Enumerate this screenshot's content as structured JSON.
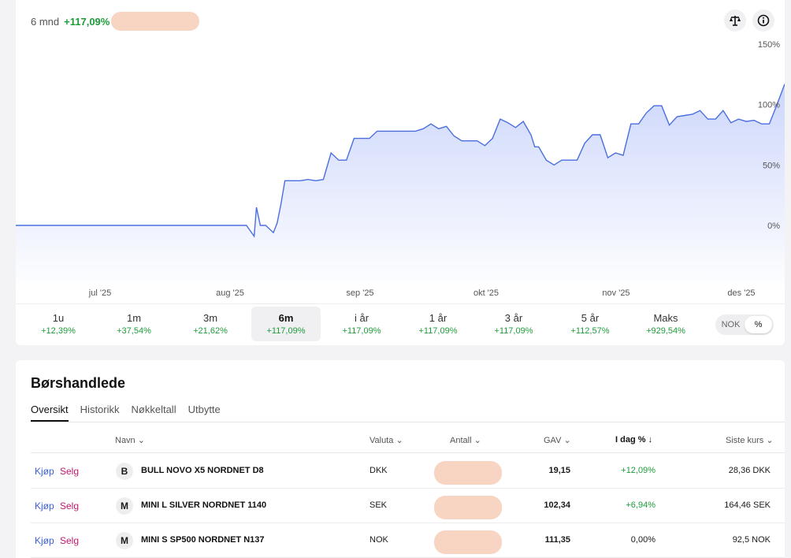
{
  "performance": {
    "period": "6 mnd",
    "value": "+117,09%"
  },
  "icons": {
    "compare": "scale-icon",
    "info": "info-icon"
  },
  "chart_data": {
    "type": "area",
    "x_labels": [
      "jul '25",
      "aug '25",
      "sep '25",
      "okt '25",
      "nov '25",
      "des '25"
    ],
    "y_ticks": [
      "150%",
      "100%",
      "50%",
      "0%"
    ],
    "ylim": [
      -50,
      150
    ],
    "y_axis_position": "right",
    "grid": false,
    "x": [
      0,
      0.05,
      0.1,
      0.15,
      0.2,
      0.25,
      0.3,
      0.31,
      0.313,
      0.318,
      0.325,
      0.335,
      0.34,
      0.345,
      0.35,
      0.36,
      0.37,
      0.38,
      0.39,
      0.4,
      0.41,
      0.42,
      0.425,
      0.43,
      0.44,
      0.45,
      0.46,
      0.47,
      0.48,
      0.49,
      0.5,
      0.51,
      0.52,
      0.53,
      0.54,
      0.55,
      0.56,
      0.57,
      0.58,
      0.59,
      0.6,
      0.61,
      0.62,
      0.63,
      0.64,
      0.65,
      0.66,
      0.67,
      0.675,
      0.68,
      0.69,
      0.7,
      0.71,
      0.72,
      0.73,
      0.74,
      0.75,
      0.76,
      0.77,
      0.78,
      0.79,
      0.8,
      0.81,
      0.82,
      0.83,
      0.84,
      0.85,
      0.86,
      0.87,
      0.88,
      0.89,
      0.9,
      0.91,
      0.92,
      0.93,
      0.94,
      0.95,
      0.96,
      0.97,
      0.98,
      0.99,
      1.0
    ],
    "values": [
      0,
      0,
      0,
      0,
      0,
      0,
      0,
      -9,
      15,
      0,
      0,
      -6,
      2,
      18,
      37,
      37,
      37,
      38,
      37,
      38,
      60,
      54,
      54,
      54,
      72,
      72,
      72,
      78,
      78,
      78,
      78,
      78,
      78,
      80,
      84,
      80,
      82,
      74,
      70,
      70,
      70,
      66,
      72,
      88,
      85,
      81,
      86,
      75,
      65,
      65,
      54,
      50,
      54,
      54,
      54,
      68,
      75,
      75,
      56,
      60,
      58,
      84,
      84,
      93,
      99,
      99,
      83,
      90,
      91,
      92,
      95,
      88,
      88,
      95,
      85,
      88,
      86,
      87,
      84,
      84,
      100,
      117
    ],
    "series": [
      {
        "values_ref": "values"
      }
    ]
  },
  "periods": [
    {
      "label": "1u",
      "change": "+12,39%"
    },
    {
      "label": "1m",
      "change": "+37,54%"
    },
    {
      "label": "3m",
      "change": "+21,62%"
    },
    {
      "label": "6m",
      "change": "+117,09%"
    },
    {
      "label": "i år",
      "change": "+117,09%"
    },
    {
      "label": "1 år",
      "change": "+117,09%"
    },
    {
      "label": "3 år",
      "change": "+117,09%"
    },
    {
      "label": "5 år",
      "change": "+112,57%"
    },
    {
      "label": "Maks",
      "change": "+929,54%"
    }
  ],
  "active_period": "6m",
  "toggle": {
    "nok": "NOK",
    "pct": "%",
    "selected": "%"
  },
  "holdings": {
    "title": "Børshandlede",
    "tabs": [
      "Oversikt",
      "Historikk",
      "Nøkkeltall",
      "Utbytte"
    ],
    "active_tab": "Oversikt",
    "columns": {
      "name": "Navn",
      "currency": "Valuta",
      "quantity": "Antall",
      "gav": "GAV",
      "today": "I dag %",
      "last": "Siste kurs"
    },
    "buy_label": "Kjøp",
    "sell_label": "Selg",
    "rows": [
      {
        "badge": "B",
        "name": "BULL NOVO X5 NORDNET D8",
        "currency": "DKK",
        "gav": "19,15",
        "today": "+12,09%",
        "last": "28,36 DKK"
      },
      {
        "badge": "M",
        "name": "MINI L SILVER NORDNET 1140",
        "currency": "SEK",
        "gav": "102,34",
        "today": "+6,94%",
        "last": "164,46 SEK"
      },
      {
        "badge": "M",
        "name": "MINI S SP500 NORDNET N137",
        "currency": "NOK",
        "gav": "111,35",
        "today": "0,00%",
        "last": "92,5 NOK"
      }
    ]
  },
  "colors": {
    "accent_line": "#4a6ee0",
    "positive": "#1d9d3a",
    "buy": "#3a5fd8",
    "sell": "#c0186a"
  }
}
